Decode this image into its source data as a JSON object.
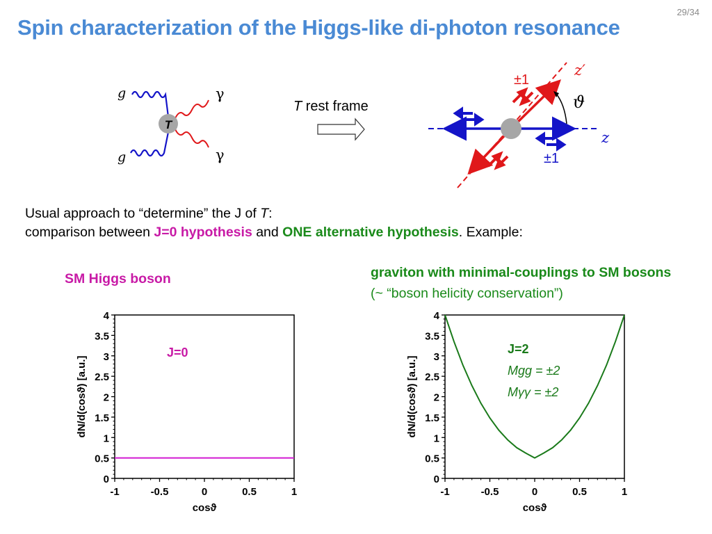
{
  "title": "Spin characterization of the Higgs-like di-photon resonance",
  "page_number": "29/34",
  "feynman": {
    "gluon_label": "g",
    "photon_label": "γ",
    "vertex_label": "T"
  },
  "rest_frame": {
    "prefix": "T",
    "suffix": " rest frame"
  },
  "frame_diagram": {
    "red_helicity": "±1",
    "blue_helicity": "±1",
    "z_prime_axis": "z′",
    "z_axis": "z",
    "angle": "ϑ"
  },
  "text": {
    "line1_a": "Usual approach to “determine” the J of ",
    "line1_b": "T",
    "line1_c": ":",
    "line2_a": "comparison between ",
    "line2_b": "J=0 hypothesis",
    "line2_c": " and ",
    "line2_d": "ONE alternative hypothesis",
    "line2_e": ". Example:"
  },
  "sm_label": "SM Higgs boson",
  "graviton_label": {
    "bold": "graviton with minimal-couplings to SM bosons",
    "rest_a": " (",
    "tilde": "~",
    "rest_b": " “boson helicity conservation”)"
  },
  "colors": {
    "title": "#4a8ad4",
    "magenta": "#c81aa6",
    "green": "#1a7a1a",
    "red": "#e0181a",
    "blue": "#1414c8"
  },
  "chart_data": [
    {
      "type": "line",
      "xlabel": "cosϑ",
      "ylabel": "dN/d(cosϑ) [a.u.]",
      "xlim": [
        -1,
        1
      ],
      "ylim": [
        0,
        4
      ],
      "x_ticks": [
        "-1",
        "-0.5",
        "0",
        "0.5",
        "1"
      ],
      "y_ticks": [
        "0",
        "0.5",
        "1",
        "1.5",
        "2",
        "2.5",
        "3",
        "3.5",
        "4"
      ],
      "annotation": [
        "J=0"
      ],
      "series": [
        {
          "x": [
            -1,
            -0.5,
            0,
            0.5,
            1
          ],
          "y": [
            0.5,
            0.5,
            0.5,
            0.5,
            0.5
          ]
        }
      ]
    },
    {
      "type": "line",
      "xlabel": "cosϑ",
      "ylabel": "dN/d(cosϑ) [a.u.]",
      "xlim": [
        -1,
        1
      ],
      "ylim": [
        0,
        4
      ],
      "x_ticks": [
        "-1",
        "-0.5",
        "0",
        "0.5",
        "1"
      ],
      "y_ticks": [
        "0",
        "0.5",
        "1",
        "1.5",
        "2",
        "2.5",
        "3",
        "3.5",
        "4"
      ],
      "annotation": [
        "J=2",
        "Mgg = ±2",
        "Mγγ = ±2"
      ],
      "series": [
        {
          "x": [
            -1,
            -0.9,
            -0.8,
            -0.7,
            -0.6,
            -0.5,
            -0.4,
            -0.3,
            -0.2,
            -0.1,
            0,
            0.1,
            0.2,
            0.3,
            0.4,
            0.5,
            0.6,
            0.7,
            0.8,
            0.9,
            1
          ],
          "y": [
            4.0,
            3.35,
            2.77,
            2.27,
            1.84,
            1.48,
            1.18,
            0.94,
            0.75,
            0.62,
            0.5,
            0.62,
            0.75,
            0.94,
            1.18,
            1.48,
            1.84,
            2.27,
            2.77,
            3.35,
            4.0
          ]
        }
      ]
    }
  ]
}
